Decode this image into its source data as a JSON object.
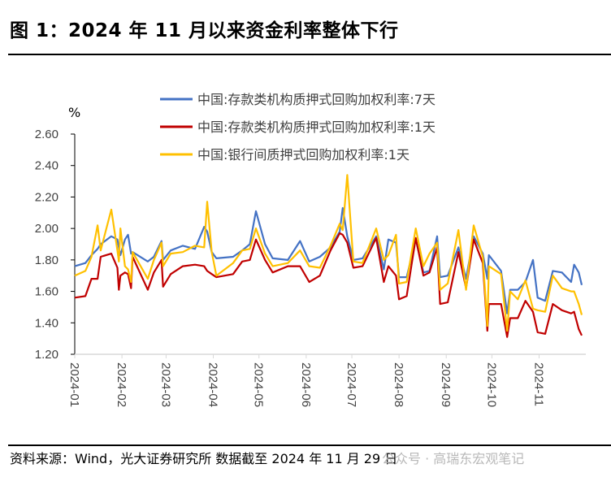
{
  "title": "图 1：2024 年 11 月以来资金利率整体下行",
  "footer": {
    "source": "资料来源：Wind，光大证券研究所  数据截至 2024 年 11 月 29 日",
    "watermark": "公众号 · 高瑞东宏观笔记"
  },
  "chart_data": {
    "type": "line",
    "title": "",
    "ylabel": "%",
    "xlabel": "",
    "ylim": [
      1.2,
      2.6
    ],
    "yticks": [
      "2.60",
      "2.40",
      "2.20",
      "2.00",
      "1.80",
      "1.60",
      "1.40",
      "1.20"
    ],
    "xticks": [
      "2024-01",
      "2024-02",
      "2024-03",
      "2024-04",
      "2024-05",
      "2024-06",
      "2024-07",
      "2024-08",
      "2024-09",
      "2024-10",
      "2024-11"
    ],
    "xlim": [
      "2024-01-01",
      "2024-11-29"
    ],
    "grid": false,
    "legend_position": "top",
    "x": [
      "2024-01-01",
      "2024-01-08",
      "2024-01-12",
      "2024-01-16",
      "2024-01-18",
      "2024-01-25",
      "2024-01-29",
      "2024-01-30",
      "2024-01-31",
      "2024-02-03",
      "2024-02-05",
      "2024-02-07",
      "2024-02-08",
      "2024-02-18",
      "2024-02-22",
      "2024-02-27",
      "2024-02-28",
      "2024-03-04",
      "2024-03-12",
      "2024-03-20",
      "2024-03-26",
      "2024-03-28",
      "2024-03-31",
      "2024-04-03",
      "2024-04-14",
      "2024-04-20",
      "2024-04-25",
      "2024-04-29",
      "2024-05-05",
      "2024-05-10",
      "2024-05-20",
      "2024-05-28",
      "2024-06-03",
      "2024-06-10",
      "2024-06-17",
      "2024-06-23",
      "2024-06-25",
      "2024-06-28",
      "2024-07-02",
      "2024-07-08",
      "2024-07-17",
      "2024-07-22",
      "2024-07-25",
      "2024-07-30",
      "2024-08-01",
      "2024-08-06",
      "2024-08-12",
      "2024-08-17",
      "2024-08-21",
      "2024-08-26",
      "2024-08-28",
      "2024-09-02",
      "2024-09-09",
      "2024-09-14",
      "2024-09-19",
      "2024-09-25",
      "2024-09-28",
      "2024-09-29",
      "2024-10-07",
      "2024-10-11",
      "2024-10-13",
      "2024-10-18",
      "2024-10-23",
      "2024-10-28",
      "2024-10-31",
      "2024-11-05",
      "2024-11-10",
      "2024-11-16",
      "2024-11-22",
      "2024-11-24",
      "2024-11-27",
      "2024-11-29"
    ],
    "series": [
      {
        "name": "中国:存款类机构质押式回购加权利率:7天",
        "color": "#4472C4",
        "values": [
          1.76,
          1.78,
          1.83,
          1.87,
          1.9,
          1.95,
          1.93,
          1.88,
          1.83,
          1.93,
          1.96,
          1.84,
          1.85,
          1.79,
          1.82,
          1.92,
          1.8,
          1.86,
          1.89,
          1.87,
          2.01,
          1.98,
          1.85,
          1.81,
          1.82,
          1.86,
          1.9,
          2.11,
          1.9,
          1.81,
          1.8,
          1.92,
          1.79,
          1.82,
          1.88,
          1.98,
          2.13,
          1.95,
          1.8,
          1.81,
          1.95,
          1.74,
          1.93,
          1.91,
          1.69,
          1.69,
          1.93,
          1.72,
          1.73,
          1.95,
          1.69,
          1.7,
          1.88,
          1.68,
          1.95,
          1.84,
          1.68,
          1.83,
          1.73,
          1.46,
          1.61,
          1.61,
          1.66,
          1.8,
          1.56,
          1.54,
          1.73,
          1.72,
          1.66,
          1.77,
          1.72,
          1.64
        ]
      },
      {
        "name": "中国:存款类机构质押式回购加权利率:1天",
        "color": "#C00000",
        "values": [
          1.56,
          1.57,
          1.68,
          1.68,
          1.82,
          1.84,
          1.75,
          1.61,
          1.7,
          1.72,
          1.71,
          1.62,
          1.82,
          1.61,
          1.72,
          1.8,
          1.63,
          1.71,
          1.76,
          1.77,
          1.76,
          1.73,
          1.71,
          1.69,
          1.71,
          1.79,
          1.8,
          1.93,
          1.8,
          1.72,
          1.76,
          1.76,
          1.66,
          1.7,
          1.86,
          1.97,
          1.96,
          1.91,
          1.75,
          1.76,
          1.94,
          1.66,
          1.76,
          1.7,
          1.55,
          1.57,
          1.94,
          1.7,
          1.72,
          1.88,
          1.52,
          1.53,
          1.85,
          1.62,
          1.93,
          1.78,
          1.35,
          1.52,
          1.52,
          1.31,
          1.43,
          1.43,
          1.54,
          1.47,
          1.34,
          1.33,
          1.52,
          1.48,
          1.46,
          1.47,
          1.36,
          1.32
        ]
      },
      {
        "name": "中国:银行间质押式回购加权利率:1天",
        "color": "#FFC000",
        "values": [
          1.7,
          1.73,
          1.82,
          2.02,
          1.86,
          2.12,
          1.86,
          1.79,
          2.0,
          1.76,
          1.74,
          1.66,
          1.85,
          1.68,
          1.8,
          1.91,
          1.76,
          1.84,
          1.85,
          1.89,
          1.88,
          2.17,
          1.85,
          1.7,
          1.78,
          1.86,
          1.87,
          2.0,
          1.84,
          1.76,
          1.78,
          1.86,
          1.76,
          1.75,
          1.89,
          2.03,
          1.99,
          2.34,
          1.79,
          1.78,
          2.0,
          1.8,
          1.83,
          1.96,
          1.65,
          1.66,
          2.0,
          1.76,
          1.84,
          1.91,
          1.61,
          1.65,
          1.99,
          1.61,
          2.02,
          1.82,
          1.38,
          1.76,
          1.71,
          1.35,
          1.6,
          1.55,
          1.67,
          1.49,
          1.48,
          1.47,
          1.7,
          1.62,
          1.6,
          1.6,
          1.52,
          1.45
        ]
      }
    ]
  }
}
